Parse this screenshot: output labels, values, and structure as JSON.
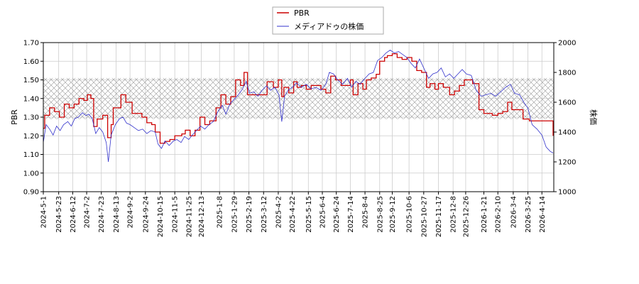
{
  "chart_data": {
    "type": "line",
    "title": "",
    "legend": {
      "placement": "top-center",
      "entries": [
        {
          "name": "PBR",
          "color": "#cc0000"
        },
        {
          "name": "メディアドゥの株価",
          "color": "#3333cc"
        }
      ]
    },
    "grid": true,
    "band": {
      "axis": "left",
      "range": [
        1.29,
        1.51
      ],
      "style": "cross-hatch"
    },
    "left_axis": {
      "label": "PBR",
      "ylim": [
        0.9,
        1.7
      ],
      "ticks": [
        "0.90",
        "1.00",
        "1.10",
        "1.20",
        "1.30",
        "1.40",
        "1.50",
        "1.60",
        "1.70"
      ]
    },
    "right_axis": {
      "label": "株価",
      "ylim": [
        1000,
        2000
      ],
      "ticks": [
        "1000",
        "1200",
        "1400",
        "1600",
        "1800",
        "2000"
      ]
    },
    "x_axis": {
      "range": [
        "2024-05-01",
        "2026-05-01"
      ],
      "ticks": [
        "2024-5-1",
        "2024-5-23",
        "2024-6-12",
        "2024-7-2",
        "2024-7-23",
        "2024-8-13",
        "2024-9-2",
        "2024-9-24",
        "2024-10-15",
        "2024-11-5",
        "2024-11-25",
        "2024-12-13",
        "2025-1-8",
        "2025-1-29",
        "2025-2-19",
        "2025-3-12",
        "2025-4-2",
        "2025-4-22",
        "2025-5-15",
        "2025-6-4",
        "2025-6-24",
        "2025-7-14",
        "2025-8-4",
        "2025-8-25",
        "2025-9-12",
        "2025-10-6",
        "2025-10-27",
        "2025-11-17",
        "2025-12-8",
        "2025-12-26",
        "2026-1-21",
        "2026-2-10",
        "2026-3-4",
        "2026-3-25",
        "2026-4-14"
      ]
    },
    "series": [
      {
        "name": "PBR",
        "axis": "left",
        "step": true,
        "color": "#cc0000",
        "points": [
          [
            "2024-05-01",
            1.24
          ],
          [
            "2024-05-03",
            1.31
          ],
          [
            "2024-05-10",
            1.35
          ],
          [
            "2024-05-17",
            1.33
          ],
          [
            "2024-05-24",
            1.3
          ],
          [
            "2024-05-31",
            1.37
          ],
          [
            "2024-06-07",
            1.35
          ],
          [
            "2024-06-14",
            1.37
          ],
          [
            "2024-06-21",
            1.4
          ],
          [
            "2024-06-28",
            1.39
          ],
          [
            "2024-07-03",
            1.42
          ],
          [
            "2024-07-08",
            1.4
          ],
          [
            "2024-07-12",
            1.25
          ],
          [
            "2024-07-17",
            1.29
          ],
          [
            "2024-07-25",
            1.31
          ],
          [
            "2024-08-01",
            1.19
          ],
          [
            "2024-08-06",
            1.26
          ],
          [
            "2024-08-09",
            1.35
          ],
          [
            "2024-08-20",
            1.42
          ],
          [
            "2024-08-27",
            1.38
          ],
          [
            "2024-09-05",
            1.32
          ],
          [
            "2024-09-19",
            1.3
          ],
          [
            "2024-09-26",
            1.27
          ],
          [
            "2024-10-03",
            1.26
          ],
          [
            "2024-10-08",
            1.22
          ],
          [
            "2024-10-15",
            1.16
          ],
          [
            "2024-10-22",
            1.17
          ],
          [
            "2024-10-29",
            1.18
          ],
          [
            "2024-11-05",
            1.2
          ],
          [
            "2024-11-15",
            1.21
          ],
          [
            "2024-11-20",
            1.23
          ],
          [
            "2024-11-27",
            1.2
          ],
          [
            "2024-12-04",
            1.23
          ],
          [
            "2024-12-11",
            1.3
          ],
          [
            "2024-12-18",
            1.26
          ],
          [
            "2024-12-25",
            1.28
          ],
          [
            "2025-01-03",
            1.35
          ],
          [
            "2025-01-10",
            1.42
          ],
          [
            "2025-01-17",
            1.37
          ],
          [
            "2025-01-24",
            1.41
          ],
          [
            "2025-01-31",
            1.5
          ],
          [
            "2025-02-07",
            1.47
          ],
          [
            "2025-02-12",
            1.54
          ],
          [
            "2025-02-17",
            1.42
          ],
          [
            "2025-02-26",
            1.42
          ],
          [
            "2025-03-05",
            1.42
          ],
          [
            "2025-03-12",
            1.42
          ],
          [
            "2025-03-17",
            1.49
          ],
          [
            "2025-03-26",
            1.46
          ],
          [
            "2025-04-02",
            1.5
          ],
          [
            "2025-04-07",
            1.41
          ],
          [
            "2025-04-10",
            1.46
          ],
          [
            "2025-04-17",
            1.43
          ],
          [
            "2025-04-24",
            1.49
          ],
          [
            "2025-04-29",
            1.46
          ],
          [
            "2025-05-05",
            1.47
          ],
          [
            "2025-05-12",
            1.45
          ],
          [
            "2025-05-19",
            1.47
          ],
          [
            "2025-05-26",
            1.47
          ],
          [
            "2025-06-02",
            1.45
          ],
          [
            "2025-06-09",
            1.43
          ],
          [
            "2025-06-16",
            1.52
          ],
          [
            "2025-06-23",
            1.5
          ],
          [
            "2025-07-01",
            1.47
          ],
          [
            "2025-07-07",
            1.47
          ],
          [
            "2025-07-14",
            1.5
          ],
          [
            "2025-07-18",
            1.42
          ],
          [
            "2025-07-25",
            1.48
          ],
          [
            "2025-08-01",
            1.45
          ],
          [
            "2025-08-06",
            1.5
          ],
          [
            "2025-08-13",
            1.51
          ],
          [
            "2025-08-20",
            1.53
          ],
          [
            "2025-08-25",
            1.6
          ],
          [
            "2025-09-01",
            1.62
          ],
          [
            "2025-09-05",
            1.63
          ],
          [
            "2025-09-12",
            1.64
          ],
          [
            "2025-09-19",
            1.62
          ],
          [
            "2025-09-26",
            1.61
          ],
          [
            "2025-10-03",
            1.62
          ],
          [
            "2025-10-10",
            1.6
          ],
          [
            "2025-10-17",
            1.55
          ],
          [
            "2025-10-24",
            1.54
          ],
          [
            "2025-10-31",
            1.46
          ],
          [
            "2025-11-05",
            1.48
          ],
          [
            "2025-11-12",
            1.45
          ],
          [
            "2025-11-17",
            1.48
          ],
          [
            "2025-11-24",
            1.46
          ],
          [
            "2025-12-03",
            1.42
          ],
          [
            "2025-12-10",
            1.44
          ],
          [
            "2025-12-17",
            1.47
          ],
          [
            "2025-12-24",
            1.5
          ],
          [
            "2026-01-05",
            1.48
          ],
          [
            "2026-01-14",
            1.34
          ],
          [
            "2026-01-21",
            1.32
          ],
          [
            "2026-02-02",
            1.31
          ],
          [
            "2026-02-10",
            1.32
          ],
          [
            "2026-02-17",
            1.33
          ],
          [
            "2026-02-24",
            1.38
          ],
          [
            "2026-03-02",
            1.34
          ],
          [
            "2026-03-09",
            1.34
          ],
          [
            "2026-03-18",
            1.29
          ],
          [
            "2026-03-27",
            1.28
          ],
          [
            "2026-04-14",
            1.28
          ],
          [
            "2026-04-30",
            1.2
          ]
        ]
      },
      {
        "name": "メディアドゥの株価",
        "axis": "right",
        "step": false,
        "color": "#3333cc",
        "points": [
          [
            "2024-05-01",
            1330
          ],
          [
            "2024-05-05",
            1450
          ],
          [
            "2024-05-10",
            1420
          ],
          [
            "2024-05-15",
            1380
          ],
          [
            "2024-05-20",
            1440
          ],
          [
            "2024-05-25",
            1410
          ],
          [
            "2024-05-30",
            1450
          ],
          [
            "2024-06-05",
            1470
          ],
          [
            "2024-06-10",
            1440
          ],
          [
            "2024-06-15",
            1490
          ],
          [
            "2024-06-20",
            1500
          ],
          [
            "2024-06-26",
            1530
          ],
          [
            "2024-07-01",
            1510
          ],
          [
            "2024-07-05",
            1520
          ],
          [
            "2024-07-10",
            1490
          ],
          [
            "2024-07-15",
            1390
          ],
          [
            "2024-07-20",
            1430
          ],
          [
            "2024-07-25",
            1400
          ],
          [
            "2024-07-30",
            1330
          ],
          [
            "2024-08-02",
            1200
          ],
          [
            "2024-08-06",
            1380
          ],
          [
            "2024-08-12",
            1450
          ],
          [
            "2024-08-18",
            1490
          ],
          [
            "2024-08-23",
            1500
          ],
          [
            "2024-08-28",
            1460
          ],
          [
            "2024-09-02",
            1450
          ],
          [
            "2024-09-08",
            1430
          ],
          [
            "2024-09-14",
            1410
          ],
          [
            "2024-09-20",
            1420
          ],
          [
            "2024-09-26",
            1390
          ],
          [
            "2024-10-02",
            1410
          ],
          [
            "2024-10-08",
            1400
          ],
          [
            "2024-10-12",
            1320
          ],
          [
            "2024-10-17",
            1290
          ],
          [
            "2024-10-22",
            1340
          ],
          [
            "2024-10-28",
            1310
          ],
          [
            "2024-11-03",
            1340
          ],
          [
            "2024-11-08",
            1350
          ],
          [
            "2024-11-14",
            1330
          ],
          [
            "2024-11-19",
            1370
          ],
          [
            "2024-11-25",
            1350
          ],
          [
            "2024-11-30",
            1380
          ],
          [
            "2024-12-06",
            1410
          ],
          [
            "2024-12-12",
            1440
          ],
          [
            "2024-12-18",
            1420
          ],
          [
            "2024-12-24",
            1450
          ],
          [
            "2024-12-30",
            1470
          ],
          [
            "2025-01-06",
            1540
          ],
          [
            "2025-01-12",
            1580
          ],
          [
            "2025-01-17",
            1520
          ],
          [
            "2025-01-23",
            1590
          ],
          [
            "2025-01-29",
            1620
          ],
          [
            "2025-02-04",
            1650
          ],
          [
            "2025-02-10",
            1690
          ],
          [
            "2025-02-15",
            1740
          ],
          [
            "2025-02-20",
            1660
          ],
          [
            "2025-02-26",
            1670
          ],
          [
            "2025-03-04",
            1640
          ],
          [
            "2025-03-10",
            1680
          ],
          [
            "2025-03-16",
            1710
          ],
          [
            "2025-03-22",
            1680
          ],
          [
            "2025-03-28",
            1700
          ],
          [
            "2025-04-03",
            1650
          ],
          [
            "2025-04-07",
            1470
          ],
          [
            "2025-04-11",
            1640
          ],
          [
            "2025-04-16",
            1680
          ],
          [
            "2025-04-22",
            1700
          ],
          [
            "2025-04-28",
            1730
          ],
          [
            "2025-05-05",
            1700
          ],
          [
            "2025-05-12",
            1720
          ],
          [
            "2025-05-19",
            1690
          ],
          [
            "2025-05-26",
            1700
          ],
          [
            "2025-06-02",
            1680
          ],
          [
            "2025-06-09",
            1720
          ],
          [
            "2025-06-14",
            1800
          ],
          [
            "2025-06-20",
            1790
          ],
          [
            "2025-06-26",
            1750
          ],
          [
            "2025-07-03",
            1720
          ],
          [
            "2025-07-10",
            1760
          ],
          [
            "2025-07-16",
            1700
          ],
          [
            "2025-07-22",
            1740
          ],
          [
            "2025-07-28",
            1720
          ],
          [
            "2025-08-04",
            1760
          ],
          [
            "2025-08-10",
            1790
          ],
          [
            "2025-08-16",
            1800
          ],
          [
            "2025-08-22",
            1880
          ],
          [
            "2025-08-28",
            1900
          ],
          [
            "2025-09-03",
            1930
          ],
          [
            "2025-09-09",
            1950
          ],
          [
            "2025-09-15",
            1930
          ],
          [
            "2025-09-21",
            1940
          ],
          [
            "2025-09-27",
            1920
          ],
          [
            "2025-10-03",
            1900
          ],
          [
            "2025-10-09",
            1860
          ],
          [
            "2025-10-15",
            1830
          ],
          [
            "2025-10-21",
            1890
          ],
          [
            "2025-10-27",
            1830
          ],
          [
            "2025-11-03",
            1760
          ],
          [
            "2025-11-09",
            1790
          ],
          [
            "2025-11-15",
            1800
          ],
          [
            "2025-11-21",
            1830
          ],
          [
            "2025-11-27",
            1770
          ],
          [
            "2025-12-03",
            1790
          ],
          [
            "2025-12-09",
            1760
          ],
          [
            "2025-12-15",
            1790
          ],
          [
            "2025-12-21",
            1820
          ],
          [
            "2025-12-27",
            1790
          ],
          [
            "2026-01-03",
            1780
          ],
          [
            "2026-01-10",
            1680
          ],
          [
            "2026-01-17",
            1640
          ],
          [
            "2026-01-24",
            1650
          ],
          [
            "2026-01-31",
            1660
          ],
          [
            "2026-02-07",
            1640
          ],
          [
            "2026-02-14",
            1670
          ],
          [
            "2026-02-21",
            1700
          ],
          [
            "2026-02-28",
            1720
          ],
          [
            "2026-03-06",
            1660
          ],
          [
            "2026-03-13",
            1650
          ],
          [
            "2026-03-19",
            1600
          ],
          [
            "2026-03-25",
            1560
          ],
          [
            "2026-03-31",
            1450
          ],
          [
            "2026-04-07",
            1420
          ],
          [
            "2026-04-14",
            1380
          ],
          [
            "2026-04-20",
            1300
          ],
          [
            "2026-04-26",
            1270
          ],
          [
            "2026-04-30",
            1260
          ]
        ]
      }
    ]
  }
}
